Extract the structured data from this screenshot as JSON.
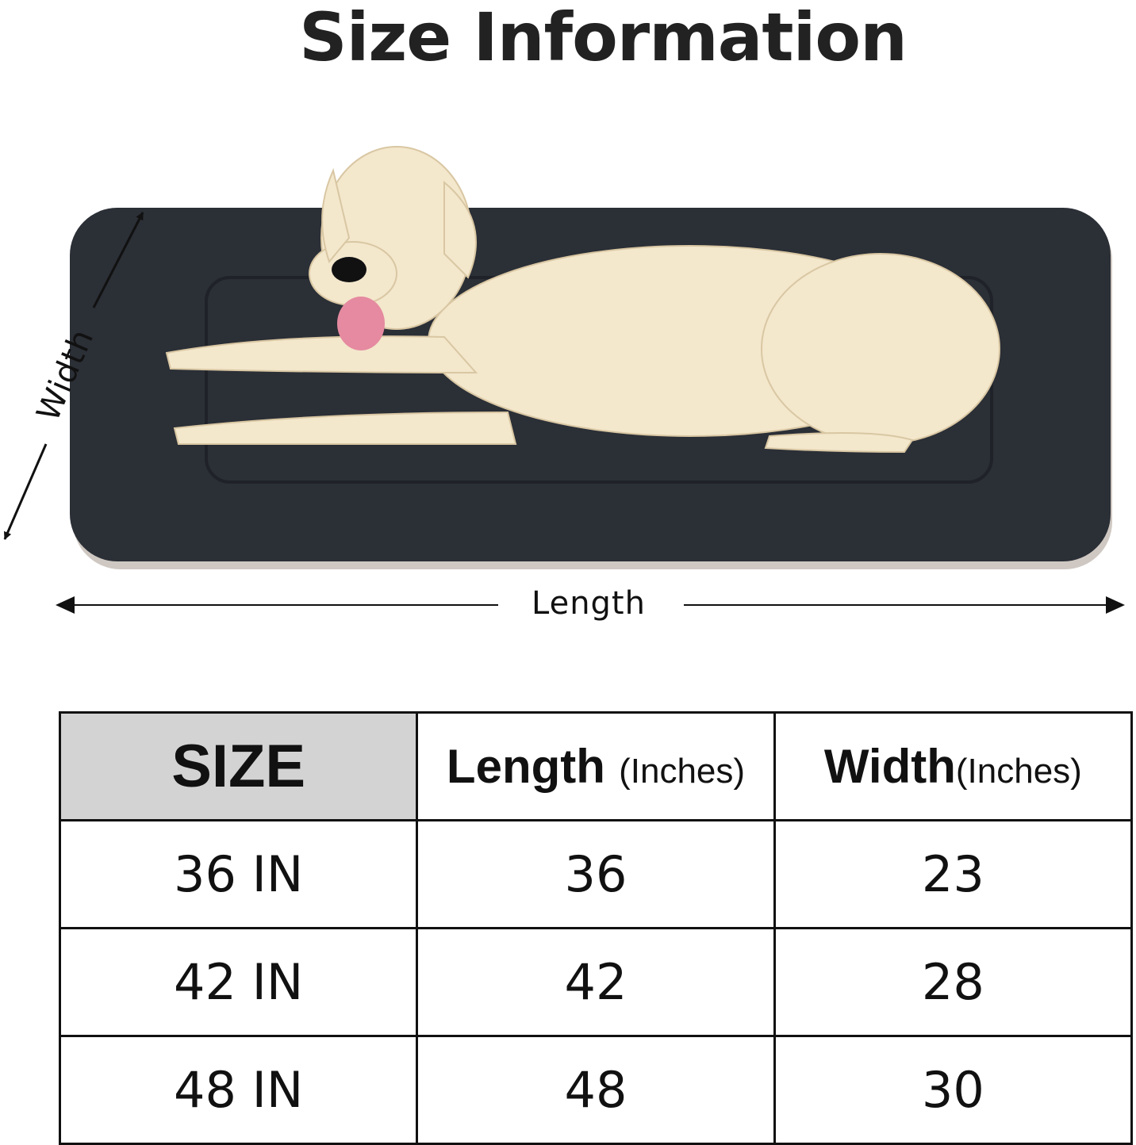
{
  "title": "Size Information",
  "diagram": {
    "width_label": "Width",
    "length_label": "Length",
    "bed_color": "#2b2f36",
    "dog_color": "#f3e7cc"
  },
  "table": {
    "headers": {
      "size": "SIZE",
      "length": "Length",
      "length_unit": "(Inches)",
      "width": "Width",
      "width_unit": "(Inches)"
    },
    "rows": [
      {
        "size": "36 IN",
        "length": "36",
        "width": "23"
      },
      {
        "size": "42 IN",
        "length": "42",
        "width": "28"
      },
      {
        "size": "48 IN",
        "length": "48",
        "width": "30"
      }
    ]
  }
}
